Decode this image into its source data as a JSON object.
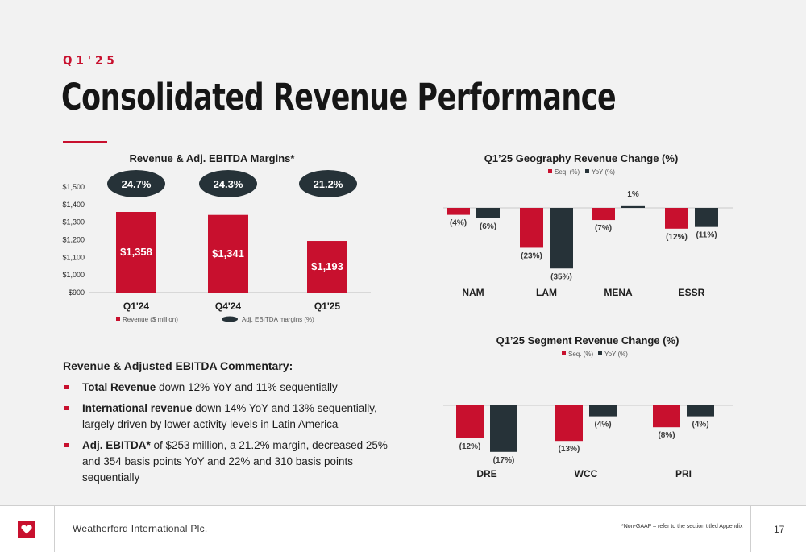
{
  "header": {
    "eyebrow": "Q1'25",
    "title": "Consolidated Revenue Performance"
  },
  "colors": {
    "accent": "#c8102e",
    "dark": "#263238",
    "background": "#f2f2f2"
  },
  "chart_data": [
    {
      "type": "bar",
      "title": "Revenue & Adj. EBITDA Margins*",
      "categories": [
        "Q1'24",
        "Q4'24",
        "Q1'25"
      ],
      "series": [
        {
          "name": "Revenue ($ million)",
          "values": [
            1358,
            1341,
            1193
          ],
          "labels": [
            "$1,358",
            "$1,341",
            "$1,193"
          ],
          "color": "#c8102e"
        },
        {
          "name": "Adj. EBITDA margins (%)",
          "values": [
            24.7,
            24.3,
            21.2
          ],
          "labels": [
            "24.7%",
            "24.3%",
            "21.2%"
          ],
          "color": "#263238"
        }
      ],
      "y_ticks": [
        "$900",
        "$1,000",
        "$1,100",
        "$1,200",
        "$1,300",
        "$1,400",
        "$1,500"
      ],
      "ylim": [
        900,
        1500
      ]
    },
    {
      "type": "bar",
      "title": "Q1’25 Geography Revenue Change (%)",
      "categories": [
        "NAM",
        "LAM",
        "MENA",
        "ESSR"
      ],
      "series": [
        {
          "name": "Seq. (%)",
          "values": [
            -4,
            -23,
            -7,
            -12
          ],
          "labels": [
            "(4%)",
            "(23%)",
            "(7%)",
            "(12%)"
          ],
          "color": "#c8102e"
        },
        {
          "name": "YoY (%)",
          "values": [
            -6,
            -35,
            1,
            -11
          ],
          "labels": [
            "(6%)",
            "(35%)",
            "1%",
            "(11%)"
          ],
          "color": "#263238"
        }
      ]
    },
    {
      "type": "bar",
      "title": "Q1’25 Segment Revenue Change (%)",
      "categories": [
        "DRE",
        "WCC",
        "PRI"
      ],
      "series": [
        {
          "name": "Seq. (%)",
          "values": [
            -12,
            -13,
            -8
          ],
          "labels": [
            "(12%)",
            "(13%)",
            "(8%)"
          ],
          "color": "#c8102e"
        },
        {
          "name": "YoY (%)",
          "values": [
            -17,
            -4,
            -4
          ],
          "labels": [
            "(17%)",
            "(4%)",
            "(4%)"
          ],
          "color": "#263238"
        }
      ]
    }
  ],
  "commentary": {
    "heading": "Revenue & Adjusted EBITDA Commentary:",
    "items": [
      {
        "bold": "Total Revenue",
        "text": " down 12% YoY and 11% sequentially"
      },
      {
        "bold": "International revenue",
        "text": " down 14% YoY and 13% sequentially, largely driven by lower activity levels in Latin America"
      },
      {
        "bold": "Adj. EBITDA*",
        "text": " of $253 million, a 21.2% margin, decreased 25% and 354 basis points YoY and 22% and 310 basis points sequentially"
      }
    ]
  },
  "footer": {
    "logo_icon": "heart-logo-icon",
    "company": "Weatherford International Plc.",
    "note": "*Non-GAAP – refer to the section titled Appendix",
    "page_number": "17"
  }
}
